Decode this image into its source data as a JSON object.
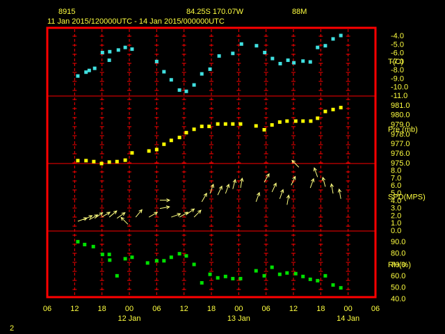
{
  "header": {
    "station": "8915",
    "location": "84.25S  170.07W",
    "elevation": "88M",
    "period": "11 Jan 2015/120000UTC - 14 Jan 2015/000000UTC"
  },
  "footer": "2",
  "chart_data": [
    {
      "type": "scatter",
      "label": "T(C)",
      "color": "#40e0e0",
      "xlim": [
        0,
        72
      ],
      "ylim": [
        -11,
        -3
      ],
      "yticks": [
        {
          "value": -4,
          "label": "-4.0"
        },
        {
          "value": -5,
          "label": "-5.0"
        },
        {
          "value": -6,
          "label": "-6.0"
        },
        {
          "value": -7,
          "label": "-7.0"
        },
        {
          "value": -8,
          "label": "-8.0"
        },
        {
          "value": -9,
          "label": "-9.0"
        },
        {
          "value": -10,
          "label": "-10.0"
        },
        {
          "value": -11,
          "label": "-11.0"
        }
      ],
      "x": [
        6.7,
        8.5,
        9.2,
        10.4,
        12.1,
        13.6,
        13.7,
        15.6,
        17.1,
        18.6,
        24,
        25.6,
        27.2,
        29,
        30.5,
        32.2,
        33.9,
        35.7,
        37.7,
        40.7,
        42.6,
        45.9,
        47.7,
        49.4,
        51.1,
        52.8,
        54.1,
        56.1,
        57.7,
        59.3,
        61,
        62.7,
        64.4
      ],
      "values": [
        -8.65,
        -8.2,
        -8.0,
        -7.75,
        -5.9,
        -6.8,
        -5.8,
        -5.6,
        -5.3,
        -5.5,
        -6.95,
        -8.15,
        -9.1,
        -10.3,
        -10.45,
        -9.7,
        -8.4,
        -7.85,
        -6.3,
        -6.0,
        -4.9,
        -5.1,
        -5.9,
        -6.6,
        -7.2,
        -6.8,
        -7.1,
        -6.9,
        -7.0,
        -5.3,
        -5.1,
        -4.3,
        -3.9
      ]
    },
    {
      "type": "scatter",
      "label": "Pre (mb)",
      "color": "#ffff00",
      "xlim": [
        0,
        72
      ],
      "ylim": [
        975,
        982
      ],
      "yticks": [
        {
          "value": 975,
          "label": "975.0"
        },
        {
          "value": 976,
          "label": "976.0"
        },
        {
          "value": 977,
          "label": "977.0"
        },
        {
          "value": 978,
          "label": "978.0"
        },
        {
          "value": 979,
          "label": "979.0"
        },
        {
          "value": 980,
          "label": "980.0"
        },
        {
          "value": 981,
          "label": "981.0"
        }
      ],
      "x": [
        6.7,
        8.5,
        10.2,
        11.9,
        13.6,
        15.3,
        17.1,
        18.6,
        22.3,
        24,
        25.6,
        27.2,
        29,
        30.5,
        32.2,
        33.9,
        35.5,
        37.4,
        39.1,
        40.7,
        42.4,
        45.8,
        47.6,
        49.3,
        51,
        52.6,
        54.5,
        56.1,
        57.8,
        59.3,
        61,
        62.7,
        64.4
      ],
      "values": [
        975.3,
        975.3,
        975.2,
        975.0,
        975.15,
        975.2,
        975.35,
        976.1,
        976.3,
        976.45,
        977.0,
        977.4,
        977.7,
        978.2,
        978.55,
        978.85,
        978.85,
        979.1,
        979.1,
        979.1,
        979.1,
        978.9,
        978.5,
        979.0,
        979.3,
        979.4,
        979.4,
        979.4,
        979.4,
        979.7,
        980.4,
        980.6,
        980.8
      ]
    },
    {
      "type": "vector",
      "label": "SPD(MPS)",
      "color": "#ffff80",
      "xlim": [
        0,
        72
      ],
      "ylim": [
        0,
        9
      ],
      "yticks": [
        {
          "value": 0,
          "label": "0.0"
        },
        {
          "value": 1,
          "label": "1.0"
        },
        {
          "value": 2,
          "label": "2.0"
        },
        {
          "value": 3,
          "label": "3.0"
        },
        {
          "value": 4,
          "label": "4.0"
        },
        {
          "value": 5,
          "label": "5.0"
        },
        {
          "value": 6,
          "label": "6.0"
        },
        {
          "value": 7,
          "label": "7.0"
        },
        {
          "value": 8,
          "label": "8.0"
        }
      ],
      "x": [
        6.7,
        7.9,
        9.2,
        10.4,
        11.9,
        13.6,
        15.3,
        17.7,
        19.4,
        22.3,
        24.7,
        24.7,
        27.2,
        29,
        30.5,
        32.2,
        33.9,
        35.7,
        37.4,
        39.1,
        40.7,
        42.4,
        45.8,
        47.6,
        49.3,
        51,
        52.6,
        53.5,
        55.2,
        57.7,
        59.3,
        61,
        62.7,
        64.4
      ],
      "values": [
        1.3,
        1.5,
        1.5,
        1.7,
        1.85,
        1.85,
        1.7,
        0.9,
        1.85,
        1.85,
        4.1,
        3.0,
        1.85,
        1.85,
        2.2,
        1.85,
        3.9,
        5.0,
        4.8,
        5.0,
        5.6,
        5.75,
        3.9,
        6.5,
        5.2,
        4.3,
        3.5,
        6.1,
        8.5,
        5.75,
        7.2,
        5.9,
        5.0,
        4.3
      ],
      "directions": [
        70,
        65,
        60,
        55,
        60,
        50,
        55,
        315,
        40,
        60,
        90,
        80,
        70,
        60,
        55,
        45,
        30,
        20,
        25,
        20,
        15,
        10,
        20,
        30,
        25,
        20,
        10,
        25,
        315,
        20,
        340,
        345,
        350,
        350
      ]
    },
    {
      "type": "scatter",
      "label": "RH(%)",
      "color": "#00e000",
      "xlim": [
        0,
        72
      ],
      "ylim": [
        40,
        100
      ],
      "yticks": [
        {
          "value": 40,
          "label": "40.0"
        },
        {
          "value": 50,
          "label": "50.0"
        },
        {
          "value": 60,
          "label": "60.0"
        },
        {
          "value": 70,
          "label": "70.0"
        },
        {
          "value": 80,
          "label": "80.0"
        },
        {
          "value": 90,
          "label": "90.0"
        }
      ],
      "x": [
        6.7,
        8.2,
        10.1,
        12.1,
        13.6,
        13.7,
        15.3,
        17.1,
        18.6,
        22,
        24,
        25.6,
        27.2,
        29,
        30.5,
        32.2,
        33.9,
        35.7,
        37.4,
        39.1,
        40.7,
        42.4,
        45.8,
        47.6,
        49.3,
        51,
        52.6,
        54.5,
        56.1,
        57.7,
        59.3,
        61,
        62.7,
        64.4
      ],
      "values": [
        90.6,
        88.1,
        86.3,
        79.4,
        79.4,
        74.4,
        60.6,
        75.6,
        76.9,
        71.9,
        73.8,
        73.8,
        76.9,
        80,
        78.1,
        70.6,
        54.4,
        61.9,
        58.8,
        60,
        58.1,
        58.1,
        65,
        60.6,
        68.1,
        61.9,
        63.1,
        62.5,
        60,
        57.5,
        56.3,
        60.6,
        52.5,
        50
      ],
      "xticks": [
        {
          "value": 0,
          "label": "06"
        },
        {
          "value": 6,
          "label": "12"
        },
        {
          "value": 12,
          "label": "18"
        },
        {
          "value": 18,
          "label": "00"
        },
        {
          "value": 24,
          "label": "06"
        },
        {
          "value": 30,
          "label": "12"
        },
        {
          "value": 36,
          "label": "18"
        },
        {
          "value": 42,
          "label": "00"
        },
        {
          "value": 48,
          "label": "06"
        },
        {
          "value": 54,
          "label": "12"
        },
        {
          "value": 60,
          "label": "18"
        },
        {
          "value": 66,
          "label": "00"
        },
        {
          "value": 72,
          "label": "06"
        }
      ],
      "x_date_labels": [
        {
          "value": 18,
          "label": "12 Jan"
        },
        {
          "value": 42,
          "label": "13 Jan"
        },
        {
          "value": 66,
          "label": "14 Jan"
        }
      ]
    }
  ]
}
